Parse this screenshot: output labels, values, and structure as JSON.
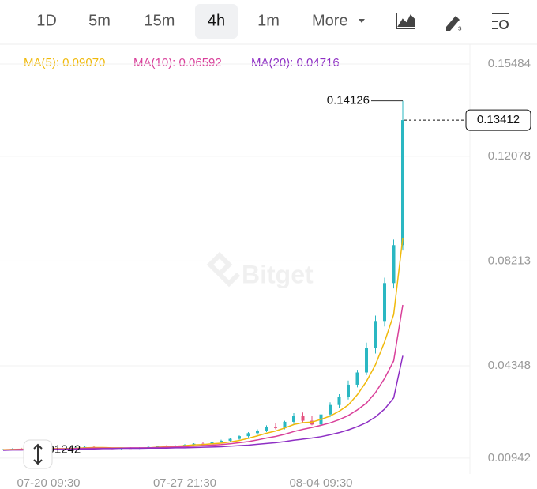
{
  "toolbar": {
    "tabs": [
      "1D",
      "5m",
      "15m",
      "4h",
      "1m"
    ],
    "selected": 3,
    "more": "More"
  },
  "chart_data": {
    "type": "candlestick",
    "watermark": "Bitget",
    "categories": [
      null,
      null,
      null,
      null,
      null,
      "07-20 09:30",
      null,
      null,
      null,
      null,
      null,
      null,
      null,
      null,
      null,
      null,
      null,
      null,
      null,
      null,
      "07-27 21:30",
      null,
      null,
      null,
      null,
      null,
      null,
      null,
      null,
      null,
      null,
      null,
      null,
      null,
      null,
      "08-04 09:30",
      null,
      null,
      null,
      null,
      null,
      null,
      null,
      null,
      null
    ],
    "candles": [
      [
        0.0124,
        0.0128,
        0.01242,
        0.0126
      ],
      [
        0.0126,
        0.013,
        0.0124,
        0.0128
      ],
      [
        0.0128,
        0.0132,
        0.0126,
        0.0127
      ],
      [
        0.0127,
        0.0131,
        0.0125,
        0.0129
      ],
      [
        0.0129,
        0.0133,
        0.0127,
        0.0128
      ],
      [
        0.0128,
        0.0131,
        0.0126,
        0.013
      ],
      [
        0.013,
        0.0134,
        0.0128,
        0.0129
      ],
      [
        0.0129,
        0.0133,
        0.0127,
        0.0131
      ],
      [
        0.0131,
        0.0136,
        0.0129,
        0.0133
      ],
      [
        0.0133,
        0.0138,
        0.0131,
        0.0135
      ],
      [
        0.0135,
        0.0139,
        0.0132,
        0.0134
      ],
      [
        0.0134,
        0.0137,
        0.0128,
        0.013
      ],
      [
        0.013,
        0.0133,
        0.0127,
        0.0129
      ],
      [
        0.0129,
        0.0132,
        0.0126,
        0.0131
      ],
      [
        0.0131,
        0.0134,
        0.0129,
        0.013
      ],
      [
        0.013,
        0.0134,
        0.0128,
        0.0133
      ],
      [
        0.0133,
        0.0137,
        0.0131,
        0.0135
      ],
      [
        0.0135,
        0.014,
        0.0133,
        0.0138
      ],
      [
        0.0138,
        0.0142,
        0.0135,
        0.0136
      ],
      [
        0.0136,
        0.0141,
        0.0134,
        0.014
      ],
      [
        0.014,
        0.0146,
        0.0137,
        0.0143
      ],
      [
        0.0143,
        0.0149,
        0.014,
        0.0147
      ],
      [
        0.0147,
        0.0152,
        0.0143,
        0.0145
      ],
      [
        0.0145,
        0.0155,
        0.0143,
        0.0153
      ],
      [
        0.0153,
        0.0162,
        0.015,
        0.0158
      ],
      [
        0.0158,
        0.0168,
        0.0155,
        0.0165
      ],
      [
        0.0165,
        0.0178,
        0.0162,
        0.0175
      ],
      [
        0.0175,
        0.019,
        0.017,
        0.0186
      ],
      [
        0.0186,
        0.02,
        0.018,
        0.0195
      ],
      [
        0.0195,
        0.0215,
        0.019,
        0.021
      ],
      [
        0.021,
        0.0225,
        0.02,
        0.0205
      ],
      [
        0.0205,
        0.0232,
        0.02,
        0.0228
      ],
      [
        0.0228,
        0.026,
        0.022,
        0.025
      ],
      [
        0.025,
        0.0262,
        0.0225,
        0.0232
      ],
      [
        0.0232,
        0.025,
        0.0215,
        0.0218
      ],
      [
        0.0218,
        0.026,
        0.0212,
        0.0255
      ],
      [
        0.0255,
        0.03,
        0.0245,
        0.029
      ],
      [
        0.029,
        0.033,
        0.028,
        0.032
      ],
      [
        0.032,
        0.038,
        0.031,
        0.0365
      ],
      [
        0.0365,
        0.042,
        0.0355,
        0.041
      ],
      [
        0.041,
        0.052,
        0.04,
        0.05
      ],
      [
        0.05,
        0.062,
        0.048,
        0.06
      ],
      [
        0.06,
        0.076,
        0.058,
        0.074
      ],
      [
        0.074,
        0.09,
        0.072,
        0.088
      ],
      [
        0.088,
        0.14126,
        0.086,
        0.13412
      ]
    ],
    "up_color": "#2ab7c2",
    "down_color": "#e4527f",
    "series": [
      {
        "name": "MA(5): 0.09070",
        "color": "#f0b90b",
        "values": [
          0.0125,
          0.0126,
          0.0127,
          0.0128,
          0.0128,
          0.0129,
          0.0129,
          0.0129,
          0.013,
          0.0132,
          0.0133,
          0.0133,
          0.0132,
          0.0132,
          0.0131,
          0.0131,
          0.0132,
          0.0134,
          0.0136,
          0.0138,
          0.014,
          0.0143,
          0.0144,
          0.0147,
          0.0149,
          0.0154,
          0.0159,
          0.0167,
          0.0176,
          0.0186,
          0.0194,
          0.0205,
          0.0218,
          0.0225,
          0.0227,
          0.0237,
          0.0249,
          0.0267,
          0.029,
          0.0328,
          0.0377,
          0.0439,
          0.0523,
          0.0624,
          0.0907
        ]
      },
      {
        "name": "MA(10): 0.06592",
        "color": "#d9409a",
        "values": [
          0.0124,
          0.0125,
          0.0126,
          0.0126,
          0.0127,
          0.0127,
          0.0128,
          0.0128,
          0.0129,
          0.013,
          0.0131,
          0.0131,
          0.0131,
          0.0131,
          0.0132,
          0.0132,
          0.0132,
          0.0133,
          0.0134,
          0.0135,
          0.0136,
          0.0138,
          0.014,
          0.0142,
          0.0144,
          0.0147,
          0.0151,
          0.0155,
          0.0161,
          0.0168,
          0.0174,
          0.0182,
          0.0192,
          0.02,
          0.0207,
          0.0215,
          0.0224,
          0.0236,
          0.0251,
          0.0272,
          0.0297,
          0.0336,
          0.0388,
          0.0453,
          0.06592
        ]
      },
      {
        "name": "MA(20): 0.04716",
        "color": "#8e2fc4",
        "values": [
          0.0123,
          0.0124,
          0.0124,
          0.0125,
          0.0125,
          0.0126,
          0.0126,
          0.0127,
          0.0127,
          0.0128,
          0.0128,
          0.0129,
          0.0129,
          0.013,
          0.013,
          0.013,
          0.0131,
          0.0131,
          0.0131,
          0.0132,
          0.0132,
          0.0133,
          0.0134,
          0.0135,
          0.0136,
          0.0138,
          0.014,
          0.0142,
          0.0145,
          0.0148,
          0.0151,
          0.0155,
          0.016,
          0.0164,
          0.0168,
          0.0173,
          0.018,
          0.0188,
          0.0198,
          0.021,
          0.0225,
          0.0246,
          0.0275,
          0.0316,
          0.04716
        ]
      }
    ],
    "ylim": [
      0.005,
      0.1595
    ],
    "yticks": [
      0.00942,
      0.04348,
      0.08213,
      0.12078,
      0.15484
    ],
    "grid": true
  }
}
